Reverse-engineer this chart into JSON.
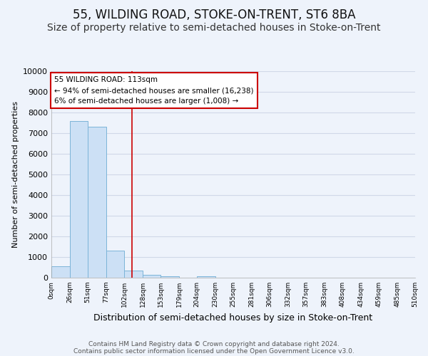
{
  "title": "55, WILDING ROAD, STOKE-ON-TRENT, ST6 8BA",
  "subtitle": "Size of property relative to semi-detached houses in Stoke-on-Trent",
  "xlabel": "Distribution of semi-detached houses by size in Stoke-on-Trent",
  "ylabel": "Number of semi-detached properties",
  "footer_line1": "Contains HM Land Registry data © Crown copyright and database right 2024.",
  "footer_line2": "Contains public sector information licensed under the Open Government Licence v3.0.",
  "bin_edges": [
    0,
    26,
    51,
    77,
    102,
    128,
    153,
    179,
    204,
    230,
    255,
    281,
    306,
    332,
    357,
    383,
    408,
    434,
    459,
    485,
    510
  ],
  "bin_counts": [
    550,
    7600,
    7300,
    1300,
    350,
    150,
    80,
    0,
    80,
    0,
    0,
    0,
    0,
    0,
    0,
    0,
    0,
    0,
    0,
    0
  ],
  "bar_color": "#cce0f5",
  "bar_edge_color": "#7bb4d8",
  "property_size": 113,
  "red_line_color": "#cc0000",
  "annotation_line1": "55 WILDING ROAD: 113sqm",
  "annotation_line2": "← 94% of semi-detached houses are smaller (16,238)",
  "annotation_line3": "6% of semi-detached houses are larger (1,008) →",
  "annotation_box_color": "#ffffff",
  "annotation_box_edge_color": "#cc0000",
  "ylim": [
    0,
    10000
  ],
  "yticks": [
    0,
    1000,
    2000,
    3000,
    4000,
    5000,
    6000,
    7000,
    8000,
    9000,
    10000
  ],
  "xtick_labels": [
    "0sqm",
    "26sqm",
    "51sqm",
    "77sqm",
    "102sqm",
    "128sqm",
    "153sqm",
    "179sqm",
    "204sqm",
    "230sqm",
    "255sqm",
    "281sqm",
    "306sqm",
    "332sqm",
    "357sqm",
    "383sqm",
    "408sqm",
    "434sqm",
    "459sqm",
    "485sqm",
    "510sqm"
  ],
  "background_color": "#eef3fb",
  "plot_bg_color": "#eef3fb",
  "grid_color": "#d0d8e8",
  "title_fontsize": 12,
  "subtitle_fontsize": 10,
  "ylabel_fontsize": 8,
  "xlabel_fontsize": 9,
  "footer_fontsize": 6.5
}
